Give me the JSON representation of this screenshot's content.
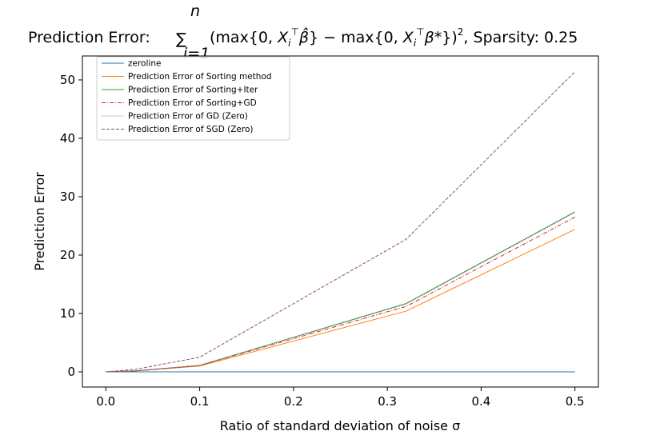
{
  "chart_data": {
    "type": "line",
    "title": {
      "prefix": "Prediction Error:",
      "sum_symbol": "∑",
      "sum_upper": "n",
      "sum_lower": "i=1",
      "expression": "(max{0, X",
      "expression_full": "(max{0,X_i^T β̂} − max{0,X_i^T β*})², Sparsity: 0.25",
      "sparsity": "Sparsity: 0.25"
    },
    "xlabel": "Ratio of standard deviation of noise σ",
    "ylabel": "Prediction Error",
    "xlim": [
      -0.025,
      0.525
    ],
    "ylim": [
      -2.6,
      54.1
    ],
    "xticks": [
      "0.0",
      "0.1",
      "0.2",
      "0.3",
      "0.4",
      "0.5"
    ],
    "yticks": [
      "0",
      "10",
      "20",
      "30",
      "40",
      "50"
    ],
    "xtick_values": [
      0.0,
      0.1,
      0.2,
      0.3,
      0.4,
      0.5
    ],
    "ytick_values": [
      0,
      10,
      20,
      30,
      40,
      50
    ],
    "legend_position": "top-left",
    "x": [
      0.0,
      0.032,
      0.1,
      0.32,
      0.5
    ],
    "series": [
      {
        "name": "zeroline",
        "values": [
          0,
          0,
          0,
          0,
          0
        ],
        "color": "#1f77b4",
        "dash": "solid"
      },
      {
        "name": "Prediction Error of Sorting method",
        "values": [
          0.0,
          0.15,
          1.0,
          10.4,
          24.4
        ],
        "color": "#ff7f0e",
        "dash": "solid"
      },
      {
        "name": "Prediction Error of Sorting+Iter",
        "values": [
          0.0,
          0.18,
          1.1,
          11.7,
          27.4
        ],
        "color": "#2ca02c",
        "dash": "solid"
      },
      {
        "name": "Prediction Error of Sorting+GD",
        "values": [
          0.0,
          0.17,
          1.08,
          11.2,
          26.5
        ],
        "color": "#d62728",
        "dash": "dashdot"
      },
      {
        "name": "Prediction Error of GD (Zero)",
        "values": [
          0.0,
          0.18,
          1.1,
          11.6,
          27.3
        ],
        "color": "#9467bd",
        "dash": "dotted"
      },
      {
        "name": "Prediction Error of SGD (Zero)",
        "values": [
          0.0,
          0.45,
          2.5,
          22.7,
          51.4
        ],
        "color": "#8c564b",
        "dash": "dashed"
      }
    ]
  }
}
